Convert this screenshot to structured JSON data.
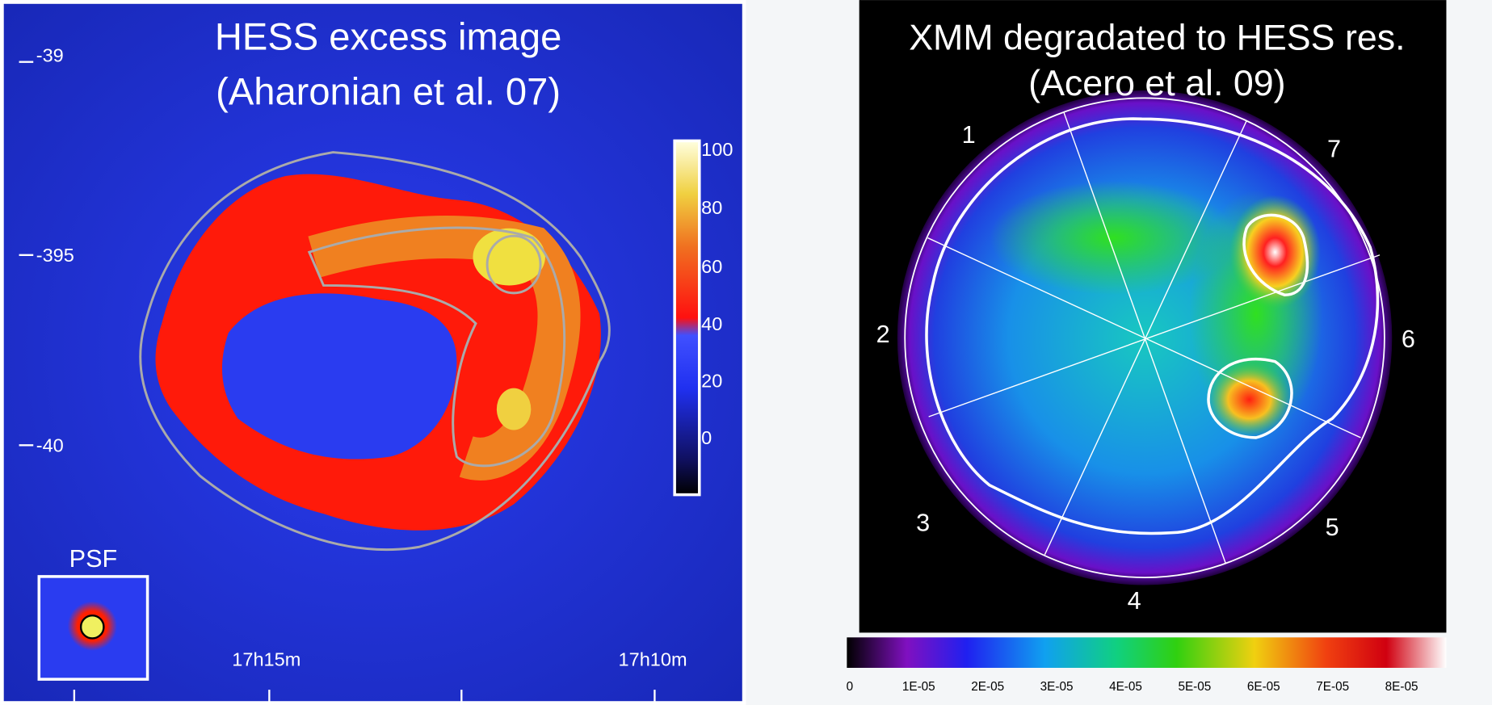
{
  "left_panel": {
    "title": [
      "HESS excess image",
      "(Aharonian et al. 07)"
    ],
    "y_ticks": [
      "-39",
      "-395",
      "-40"
    ],
    "x_ticks": [
      "17h15m",
      "17h10m"
    ],
    "colorbar_ticks": [
      "100",
      "80",
      "60",
      "40",
      "20",
      "0"
    ],
    "psf_label": "PSF"
  },
  "right_panel": {
    "title": [
      "XMM degradated to HESS res.",
      "(Acero et al. 09)"
    ],
    "sector_labels": [
      "1",
      "2",
      "3",
      "4",
      "5",
      "6",
      "7"
    ],
    "colorbar_ticks": [
      "0",
      "1E-05",
      "2E-05",
      "3E-05",
      "4E-05",
      "5E-05",
      "6E-05",
      "7E-05",
      "8E-05"
    ]
  }
}
